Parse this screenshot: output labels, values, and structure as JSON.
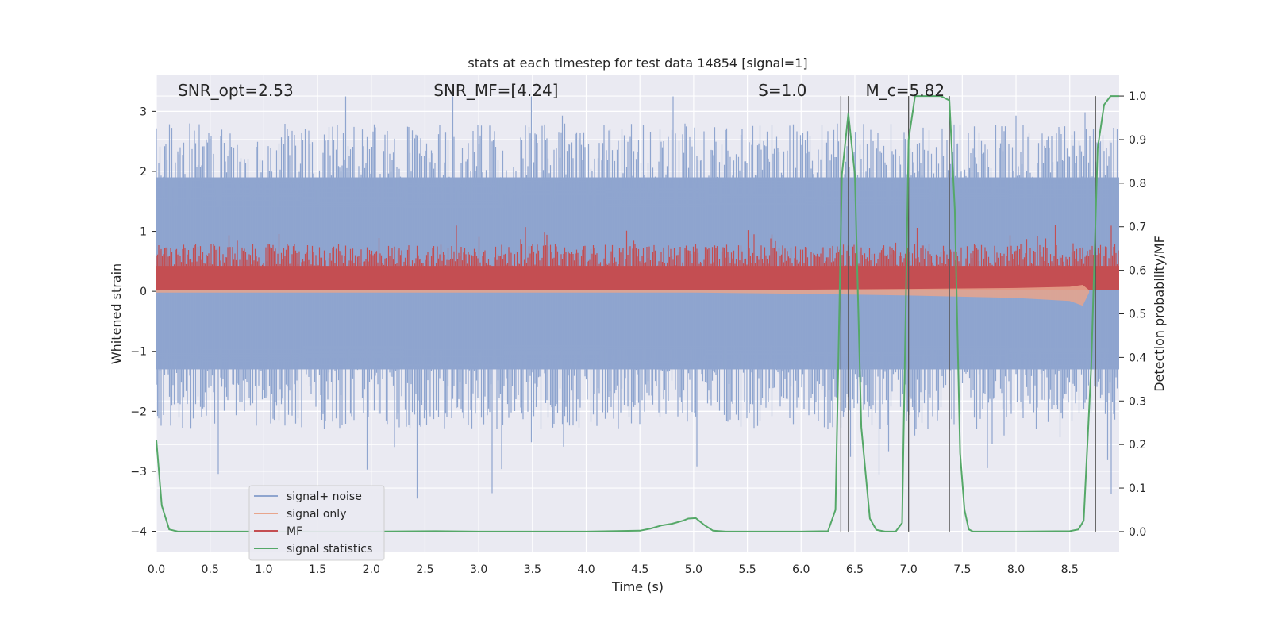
{
  "chart_data": {
    "type": "line",
    "title": "stats at each timestep for test data 14854 [signal=1]",
    "xlabel": "Time (s)",
    "ylabel": "Whitened strain",
    "y2label": "Detection probability/MF",
    "xlim": [
      0.0,
      8.96
    ],
    "ylim": [
      -4.35,
      3.6
    ],
    "y2lim": [
      -0.0475,
      1.0475
    ],
    "x_ticks": [
      0.0,
      0.5,
      1.0,
      1.5,
      2.0,
      2.5,
      3.0,
      3.5,
      4.0,
      4.5,
      5.0,
      5.5,
      6.0,
      6.5,
      7.0,
      7.5,
      8.0,
      8.5
    ],
    "x_tick_labels": [
      "0.0",
      "0.5",
      "1.0",
      "1.5",
      "2.0",
      "2.5",
      "3.0",
      "3.5",
      "4.0",
      "4.5",
      "5.0",
      "5.5",
      "6.0",
      "6.5",
      "7.0",
      "7.5",
      "8.0",
      "8.5"
    ],
    "y_ticks": [
      3,
      2,
      1,
      0,
      -1,
      -2,
      -3,
      -4
    ],
    "y_tick_labels": [
      "3",
      "2",
      "1",
      "0",
      "−1",
      "−2",
      "−3",
      "−4"
    ],
    "y2_ticks": [
      1.0,
      0.9,
      0.8,
      0.7,
      0.6,
      0.5,
      0.4,
      0.3,
      0.2,
      0.1,
      0.0
    ],
    "y2_tick_labels": [
      "1.0",
      "0.9",
      "0.8",
      "0.7",
      "0.6",
      "0.5",
      "0.4",
      "0.3",
      "0.2",
      "0.1",
      "0.0"
    ],
    "grid": true,
    "legend_position": "lower-left",
    "annotations": [
      {
        "name": "snr-opt",
        "text": "SNR_opt=2.53",
        "x": 0.2
      },
      {
        "name": "snr-mf",
        "text": "SNR_MF=[4.24]",
        "x": 2.58
      },
      {
        "name": "s-value",
        "text": "S=1.0",
        "x": 5.6
      },
      {
        "name": "mc-value",
        "text": "M_c=5.82",
        "x": 6.6
      }
    ],
    "series": [
      {
        "name": "signal+ noise",
        "color": "#8fa5cf",
        "kind": "noise-band",
        "center": 0.0,
        "typical_range": [
          -1.3,
          1.9
        ],
        "extreme_range": [
          -4.0,
          3.25
        ]
      },
      {
        "name": "signal only",
        "color": "#e8a58c",
        "kind": "chirp",
        "points": [
          [
            0.0,
            0.0
          ],
          [
            5.0,
            0.0
          ],
          [
            6.0,
            -0.02
          ],
          [
            7.0,
            -0.05
          ],
          [
            8.0,
            -0.09
          ],
          [
            8.5,
            -0.14
          ],
          [
            8.62,
            -0.22
          ],
          [
            8.68,
            0.0
          ]
        ]
      },
      {
        "name": "MF",
        "color": "#c44e52",
        "kind": "band",
        "axis": "y2",
        "base": 0.555,
        "typical_top": 0.66,
        "max_top": 0.705
      },
      {
        "name": "signal statistics",
        "color": "#55a868",
        "axis": "y2",
        "points": [
          [
            0.0,
            0.21
          ],
          [
            0.05,
            0.06
          ],
          [
            0.12,
            0.005
          ],
          [
            0.2,
            0.0
          ],
          [
            1.0,
            0.0
          ],
          [
            2.0,
            0.0
          ],
          [
            2.6,
            0.001
          ],
          [
            3.0,
            0.0
          ],
          [
            4.0,
            0.0
          ],
          [
            4.5,
            0.002
          ],
          [
            4.6,
            0.007
          ],
          [
            4.7,
            0.014
          ],
          [
            4.8,
            0.018
          ],
          [
            4.9,
            0.025
          ],
          [
            4.95,
            0.03
          ],
          [
            5.02,
            0.031
          ],
          [
            5.1,
            0.015
          ],
          [
            5.18,
            0.002
          ],
          [
            5.3,
            0.0
          ],
          [
            6.0,
            0.0
          ],
          [
            6.25,
            0.001
          ],
          [
            6.32,
            0.05
          ],
          [
            6.38,
            0.82
          ],
          [
            6.44,
            0.96
          ],
          [
            6.5,
            0.82
          ],
          [
            6.56,
            0.24
          ],
          [
            6.64,
            0.03
          ],
          [
            6.7,
            0.004
          ],
          [
            6.78,
            0.0
          ],
          [
            6.88,
            0.0
          ],
          [
            6.94,
            0.02
          ],
          [
            7.0,
            0.9
          ],
          [
            7.06,
            1.0
          ],
          [
            7.15,
            1.0
          ],
          [
            7.3,
            1.0
          ],
          [
            7.38,
            0.99
          ],
          [
            7.43,
            0.74
          ],
          [
            7.48,
            0.18
          ],
          [
            7.52,
            0.05
          ],
          [
            7.56,
            0.005
          ],
          [
            7.6,
            0.0
          ],
          [
            8.0,
            0.0
          ],
          [
            8.5,
            0.001
          ],
          [
            8.58,
            0.005
          ],
          [
            8.63,
            0.025
          ],
          [
            8.7,
            0.38
          ],
          [
            8.76,
            0.88
          ],
          [
            8.82,
            0.98
          ],
          [
            8.88,
            1.0
          ],
          [
            8.96,
            1.0
          ]
        ]
      }
    ],
    "vertical_lines": [
      6.37,
      6.44,
      7.0,
      7.38,
      8.74
    ]
  }
}
